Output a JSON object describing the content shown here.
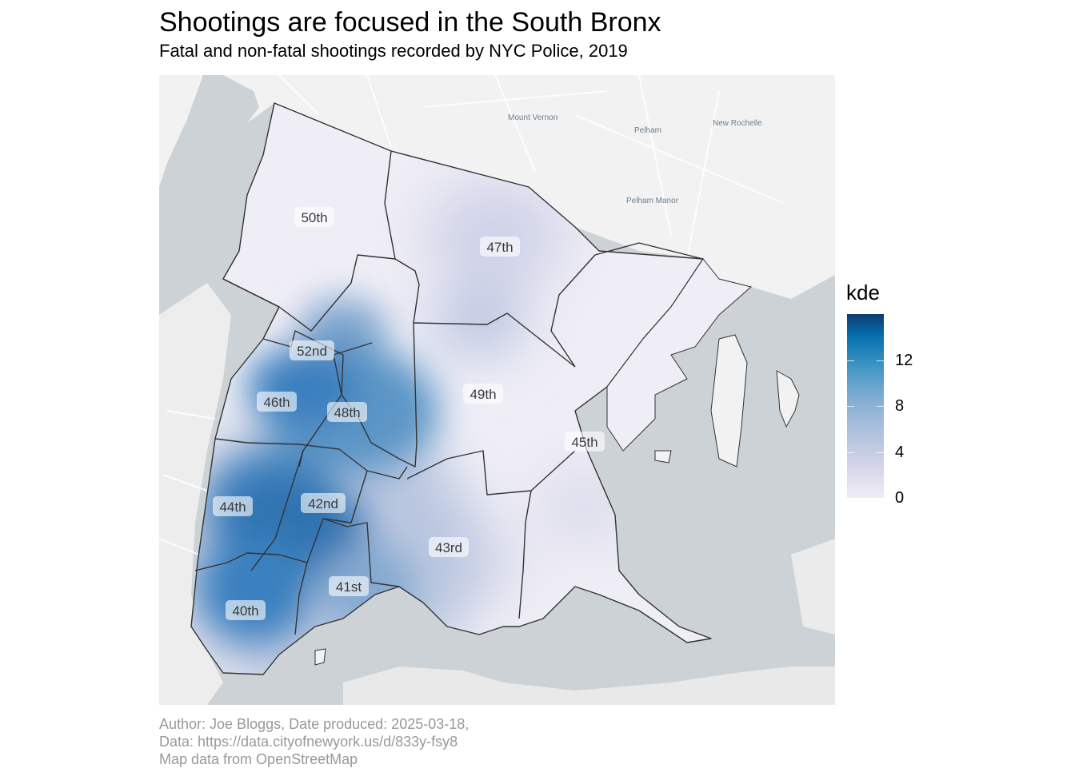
{
  "title": "Shootings are focused in the South Bronx",
  "subtitle": "Fatal and non-fatal shootings recorded by NYC Police, 2019",
  "caption": {
    "line1": "Author: Joe Bloggs, Date produced: 2025-03-18,",
    "line2": "Data: https://data.cityofnewyork.us/d/833y-fsy8",
    "line3": "Map data from OpenStreetMap"
  },
  "legend": {
    "title": "kde",
    "ticks": [
      "0",
      "4",
      "8",
      "12"
    ],
    "tick_values": [
      0,
      4,
      8,
      12
    ],
    "max_value": 16
  },
  "place_names": {
    "mount_vernon": "Mount Vernon",
    "pelham": "Pelham",
    "new_rochelle": "New Rochelle",
    "pelham_manor": "Pelham Manor"
  },
  "precincts": [
    {
      "id": "50th",
      "label": "50th",
      "kde_level": "low"
    },
    {
      "id": "47th",
      "label": "47th",
      "kde_level": "moderate"
    },
    {
      "id": "52nd",
      "label": "52nd",
      "kde_level": "high"
    },
    {
      "id": "46th",
      "label": "46th",
      "kde_level": "very high"
    },
    {
      "id": "48th",
      "label": "48th",
      "kde_level": "moderate"
    },
    {
      "id": "49th",
      "label": "49th",
      "kde_level": "low"
    },
    {
      "id": "45th",
      "label": "45th",
      "kde_level": "low"
    },
    {
      "id": "44th",
      "label": "44th",
      "kde_level": "very high"
    },
    {
      "id": "42nd",
      "label": "42nd",
      "kde_level": "very high"
    },
    {
      "id": "43rd",
      "label": "43rd",
      "kde_level": "moderate"
    },
    {
      "id": "41st",
      "label": "41st",
      "kde_level": "moderate"
    },
    {
      "id": "40th",
      "label": "40th",
      "kde_level": "very high"
    }
  ],
  "colors": {
    "water": "#ccd2d6",
    "land": "#f2f2f2",
    "boundary": "#333333",
    "kde_low": "#efedf5",
    "kde_high": "#0b3d6e",
    "caption": "#999999"
  }
}
